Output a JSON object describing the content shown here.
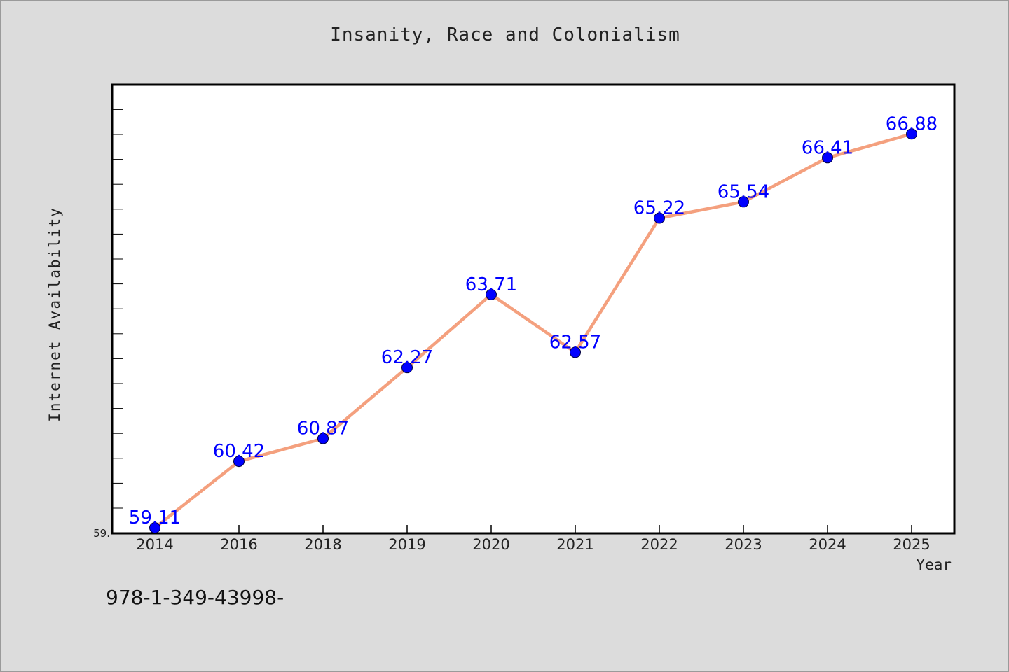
{
  "chart_data": {
    "type": "line",
    "title": "Insanity, Race and Colonialism",
    "xlabel": "Year",
    "ylabel": "Internet Availability",
    "categories": [
      "2014",
      "2016",
      "2018",
      "2019",
      "2020",
      "2021",
      "2022",
      "2023",
      "2024",
      "2025"
    ],
    "series": [
      {
        "values": [
          59.11,
          60.42,
          60.87,
          62.27,
          63.71,
          62.57,
          65.22,
          65.54,
          66.41,
          66.88
        ]
      }
    ],
    "ytick_labels": [
      "59."
    ],
    "data_labels": [
      "59.11",
      "60.42",
      "60.87",
      "62.27",
      "63.71",
      "62.57",
      "65.22",
      "65.54",
      "66.41",
      "66.88"
    ],
    "ylim": [
      59.0,
      67.85
    ],
    "grid": false,
    "legend": "none",
    "colors": {
      "line": "#f4a07e",
      "marker": "#0000ff",
      "data_label": "#0000ff",
      "background": "#dcdcdc",
      "plot_background": "#ffffff"
    }
  },
  "footer": {
    "note": "978-1-349-43998-"
  }
}
